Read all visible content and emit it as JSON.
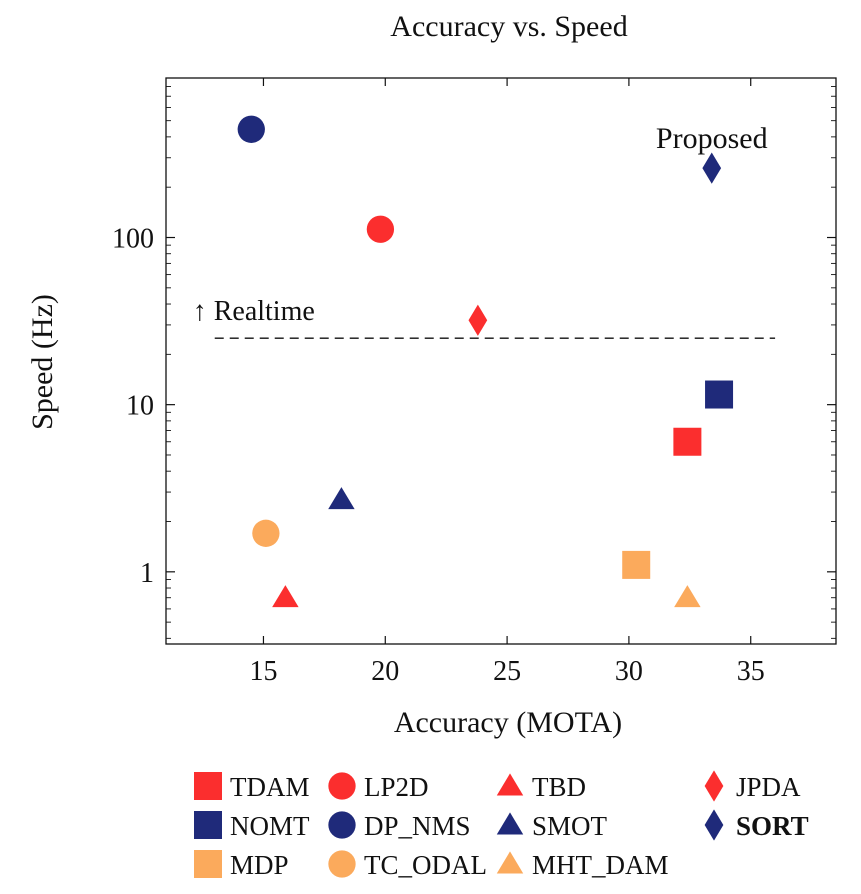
{
  "chart_data": {
    "type": "scatter",
    "title": "Accuracy vs. Speed",
    "xlabel": "Accuracy (MOTA)",
    "ylabel": "Speed (Hz)",
    "x_scale": "linear",
    "y_scale": "log",
    "xlim": [
      11,
      38.5
    ],
    "ylim": [
      0.37,
      900
    ],
    "xticks": [
      15,
      20,
      25,
      30,
      35
    ],
    "yticks": [
      1,
      10,
      100
    ],
    "ytick_labels": [
      "1",
      "10",
      "100"
    ],
    "grid": false,
    "legend_placement": "bottom",
    "reference_line": {
      "y": 25,
      "x_range": [
        13,
        36
      ],
      "label": "↑ Realtime",
      "style": "dashed"
    },
    "annotations": [
      {
        "text": "Proposed",
        "x": 33.4,
        "y": 260
      }
    ],
    "series": [
      {
        "name": "TDAM",
        "marker": "square",
        "color": "#fb2e2e",
        "points": [
          {
            "x": 32.4,
            "y": 6.0
          }
        ]
      },
      {
        "name": "LP2D",
        "marker": "circle",
        "color": "#fb2e2e",
        "points": [
          {
            "x": 19.8,
            "y": 112
          }
        ]
      },
      {
        "name": "TBD",
        "marker": "triangle",
        "color": "#fb2e2e",
        "points": [
          {
            "x": 15.9,
            "y": 0.7
          }
        ]
      },
      {
        "name": "JPDA",
        "marker": "diamond",
        "color": "#fb2e2e",
        "points": [
          {
            "x": 23.8,
            "y": 32
          }
        ]
      },
      {
        "name": "NOMT",
        "marker": "square",
        "color": "#1f2a7a",
        "points": [
          {
            "x": 33.7,
            "y": 11.5
          }
        ]
      },
      {
        "name": "DP_NMS",
        "marker": "circle",
        "color": "#1f2a7a",
        "points": [
          {
            "x": 14.5,
            "y": 444
          }
        ]
      },
      {
        "name": "SMOT",
        "marker": "triangle",
        "color": "#1f2a7a",
        "points": [
          {
            "x": 18.2,
            "y": 2.7
          }
        ]
      },
      {
        "name": "SORT",
        "marker": "diamond",
        "color": "#1f2a7a",
        "bold": true,
        "points": [
          {
            "x": 33.4,
            "y": 260
          }
        ]
      },
      {
        "name": "MDP",
        "marker": "square",
        "color": "#fbaa5c",
        "points": [
          {
            "x": 30.3,
            "y": 1.1
          }
        ]
      },
      {
        "name": "TC_ODAL",
        "marker": "circle",
        "color": "#fbaa5c",
        "points": [
          {
            "x": 15.1,
            "y": 1.7
          }
        ]
      },
      {
        "name": "MHT_DAM",
        "marker": "triangle",
        "color": "#fbaa5c",
        "points": [
          {
            "x": 32.4,
            "y": 0.7
          }
        ]
      }
    ],
    "legend_columns": 4
  }
}
